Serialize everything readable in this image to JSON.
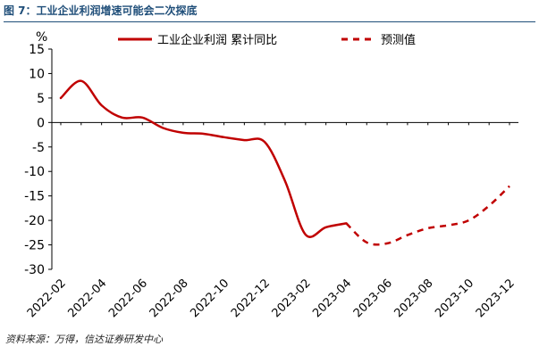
{
  "figure": {
    "title": "图 7：工业企业利润增速可能会二次探底",
    "source": "资料来源：万得，信达证券研发中心"
  },
  "chart_data": {
    "type": "line",
    "title": "工业企业利润增速可能会二次探底",
    "ylabel": "%",
    "ylim": [
      -30,
      15
    ],
    "yticks": [
      15,
      10,
      5,
      0,
      -5,
      -10,
      -15,
      -20,
      -25,
      -30
    ],
    "xticks": [
      "2022-02",
      "2022-04",
      "2022-06",
      "2022-08",
      "2022-10",
      "2022-12",
      "2023-02",
      "2023-04",
      "2023-06",
      "2023-08",
      "2023-10",
      "2023-12"
    ],
    "grid": false,
    "legend": "top",
    "series": [
      {
        "name": "工业企业利润 累计同比",
        "style": "solid",
        "color": "#c00000",
        "x": [
          "2022-02",
          "2022-03",
          "2022-04",
          "2022-05",
          "2022-06",
          "2022-07",
          "2022-08",
          "2022-09",
          "2022-10",
          "2022-11",
          "2022-12",
          "2023-01",
          "2023-02",
          "2023-03",
          "2023-04"
        ],
        "values": [
          5.0,
          8.5,
          3.5,
          1.0,
          1.0,
          -1.1,
          -2.1,
          -2.3,
          -3.0,
          -3.6,
          -4.0,
          -12.0,
          -22.9,
          -21.4,
          -20.6
        ]
      },
      {
        "name": "预测值",
        "style": "dashed",
        "color": "#c00000",
        "x": [
          "2023-04",
          "2023-05",
          "2023-06",
          "2023-07",
          "2023-08",
          "2023-09",
          "2023-10",
          "2023-11",
          "2023-12"
        ],
        "values": [
          -20.6,
          -24.5,
          -24.7,
          -23.0,
          -21.6,
          -21.0,
          -20.0,
          -17.0,
          -13.0
        ]
      }
    ]
  }
}
